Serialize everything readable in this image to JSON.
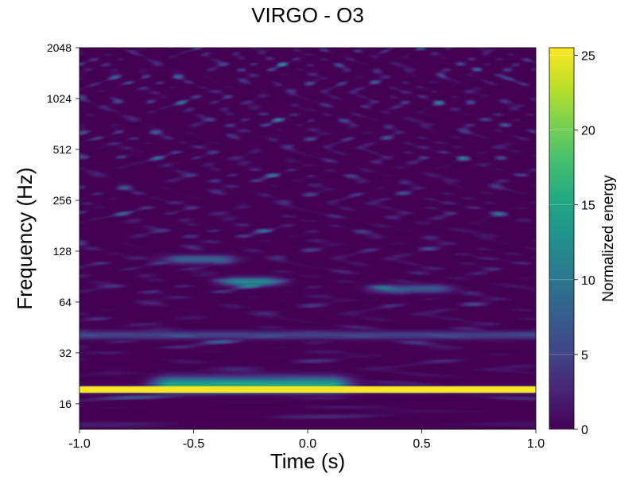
{
  "chart_data": {
    "type": "heatmap",
    "title": "VIRGO - O3",
    "xlabel": "Time (s)",
    "ylabel": "Frequency (Hz)",
    "x_ticks": [
      "-1.0",
      "-0.5",
      "0.0",
      "0.5",
      "1.0"
    ],
    "x_tick_values": [
      -1.0,
      -0.5,
      0.0,
      0.5,
      1.0
    ],
    "xlim": [
      -1.0,
      1.0
    ],
    "y_scale": "log2",
    "y_ticks": [
      "16",
      "32",
      "64",
      "128",
      "256",
      "512",
      "1024",
      "2048"
    ],
    "y_tick_values": [
      16,
      32,
      64,
      128,
      256,
      512,
      1024,
      2048
    ],
    "ylim": [
      11.3,
      2048
    ],
    "colormap": "viridis",
    "colorbar": {
      "label": "Normalized energy",
      "ticks": [
        "0",
        "5",
        "10",
        "15",
        "20",
        "25"
      ],
      "tick_values": [
        0,
        5,
        10,
        15,
        20,
        25
      ],
      "range": [
        0,
        25.5
      ]
    },
    "features": [
      {
        "description": "saturated narrow line",
        "frequency_hz": 19.5,
        "time_range": [
          -1.0,
          1.0
        ],
        "energy": 25.5
      },
      {
        "description": "broad excess around line",
        "frequency_hz": 21,
        "time_range": [
          -0.6,
          0.1
        ],
        "energy": 14
      },
      {
        "description": "weak tone",
        "frequency_hz": 41,
        "time_range": [
          -1.0,
          1.0
        ],
        "energy": 5
      },
      {
        "description": "blob",
        "frequency_hz": 115,
        "time_range": [
          -0.55,
          -0.4
        ],
        "energy": 8
      },
      {
        "description": "blob",
        "frequency_hz": 85,
        "time_range": [
          -0.3,
          -0.2
        ],
        "energy": 12
      },
      {
        "description": "blob",
        "frequency_hz": 77,
        "time_range": [
          0.35,
          0.55
        ],
        "energy": 7
      }
    ]
  }
}
